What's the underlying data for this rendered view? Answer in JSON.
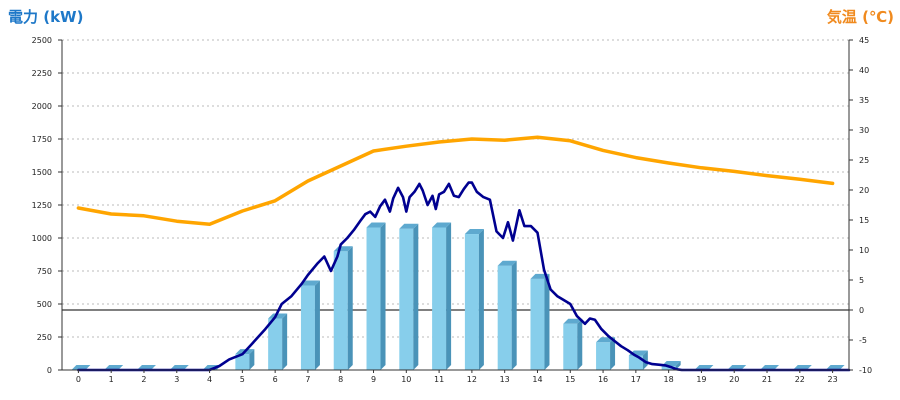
{
  "chart_data": {
    "type": "bar",
    "left_axis_label": "電力 (kW)",
    "right_axis_label": "気温 (℃)",
    "ylim_left": [
      0,
      2500
    ],
    "ylim_right": [
      -10,
      45
    ],
    "left_ticks": [
      0,
      250,
      500,
      750,
      1000,
      1250,
      1500,
      1750,
      2000,
      2250,
      2500
    ],
    "right_ticks": [
      -10,
      -5,
      0,
      5,
      10,
      15,
      20,
      25,
      30,
      35,
      40,
      45
    ],
    "categories": [
      "0",
      "1",
      "2",
      "3",
      "4",
      "5",
      "6",
      "7",
      "8",
      "9",
      "10",
      "11",
      "12",
      "13",
      "14",
      "15",
      "16",
      "17",
      "18",
      "19",
      "20",
      "21",
      "22",
      "23"
    ],
    "grid": true,
    "reference_line": {
      "axis": "right",
      "value": 0
    },
    "colors": {
      "bars": "#87ceeb",
      "bar_side": "#4a93b8",
      "bar_top": "#5ea9cf",
      "power_line": "#000090",
      "temperature_line": "#ffa500",
      "left_label": "#1e78c8",
      "right_label": "#f08a1e",
      "grid": "#bbbbbb"
    },
    "series": [
      {
        "type": "bar",
        "axis": "left",
        "values": [
          0,
          0,
          0,
          0,
          0,
          120,
          390,
          640,
          900,
          1080,
          1070,
          1080,
          1030,
          790,
          690,
          350,
          210,
          110,
          30,
          0,
          0,
          0,
          0,
          0
        ]
      },
      {
        "type": "line",
        "axis": "left",
        "points": [
          [
            0,
            0
          ],
          [
            1,
            0
          ],
          [
            2,
            0
          ],
          [
            3,
            0
          ],
          [
            4,
            0
          ],
          [
            4.3,
            30
          ],
          [
            4.6,
            80
          ],
          [
            5,
            120
          ],
          [
            5.3,
            200
          ],
          [
            5.7,
            310
          ],
          [
            6,
            400
          ],
          [
            6.2,
            500
          ],
          [
            6.5,
            560
          ],
          [
            6.8,
            650
          ],
          [
            7,
            720
          ],
          [
            7.3,
            810
          ],
          [
            7.5,
            860
          ],
          [
            7.7,
            750
          ],
          [
            7.9,
            860
          ],
          [
            8,
            950
          ],
          [
            8.2,
            1000
          ],
          [
            8.4,
            1060
          ],
          [
            8.6,
            1130
          ],
          [
            8.75,
            1180
          ],
          [
            8.9,
            1200
          ],
          [
            9.05,
            1160
          ],
          [
            9.2,
            1240
          ],
          [
            9.35,
            1290
          ],
          [
            9.5,
            1200
          ],
          [
            9.6,
            1300
          ],
          [
            9.75,
            1380
          ],
          [
            9.9,
            1310
          ],
          [
            10,
            1200
          ],
          [
            10.1,
            1310
          ],
          [
            10.25,
            1350
          ],
          [
            10.4,
            1410
          ],
          [
            10.5,
            1360
          ],
          [
            10.65,
            1250
          ],
          [
            10.8,
            1320
          ],
          [
            10.9,
            1220
          ],
          [
            11,
            1330
          ],
          [
            11.15,
            1350
          ],
          [
            11.3,
            1410
          ],
          [
            11.45,
            1320
          ],
          [
            11.6,
            1310
          ],
          [
            11.75,
            1370
          ],
          [
            11.9,
            1420
          ],
          [
            12,
            1420
          ],
          [
            12.15,
            1350
          ],
          [
            12.35,
            1310
          ],
          [
            12.55,
            1290
          ],
          [
            12.75,
            1050
          ],
          [
            12.95,
            1000
          ],
          [
            13.1,
            1120
          ],
          [
            13.25,
            980
          ],
          [
            13.45,
            1210
          ],
          [
            13.6,
            1090
          ],
          [
            13.8,
            1090
          ],
          [
            14,
            1040
          ],
          [
            14.2,
            760
          ],
          [
            14.4,
            610
          ],
          [
            14.6,
            560
          ],
          [
            14.8,
            530
          ],
          [
            15,
            500
          ],
          [
            15.2,
            410
          ],
          [
            15.45,
            350
          ],
          [
            15.6,
            390
          ],
          [
            15.75,
            380
          ],
          [
            15.95,
            310
          ],
          [
            16.15,
            260
          ],
          [
            16.35,
            220
          ],
          [
            16.55,
            180
          ],
          [
            16.75,
            150
          ],
          [
            16.95,
            115
          ],
          [
            17.1,
            95
          ],
          [
            17.3,
            60
          ],
          [
            17.5,
            45
          ],
          [
            17.7,
            40
          ],
          [
            17.9,
            35
          ],
          [
            18.1,
            20
          ],
          [
            18.25,
            5
          ],
          [
            18.4,
            0
          ],
          [
            23.5,
            0
          ]
        ]
      },
      {
        "type": "line",
        "axis": "right",
        "points": [
          [
            0,
            17
          ],
          [
            1,
            16
          ],
          [
            2,
            15.7
          ],
          [
            3,
            14.8
          ],
          [
            4,
            14.3
          ],
          [
            5,
            16.5
          ],
          [
            6,
            18.2
          ],
          [
            7,
            21.5
          ],
          [
            8,
            24
          ],
          [
            9,
            26.5
          ],
          [
            10,
            27.3
          ],
          [
            11,
            28
          ],
          [
            12,
            28.5
          ],
          [
            13,
            28.3
          ],
          [
            14,
            28.8
          ],
          [
            15,
            28.2
          ],
          [
            16,
            26.6
          ],
          [
            17,
            25.4
          ],
          [
            18,
            24.5
          ],
          [
            19,
            23.7
          ],
          [
            20,
            23.1
          ],
          [
            21,
            22.4
          ],
          [
            22,
            21.8
          ],
          [
            23,
            21.1
          ]
        ]
      }
    ]
  }
}
